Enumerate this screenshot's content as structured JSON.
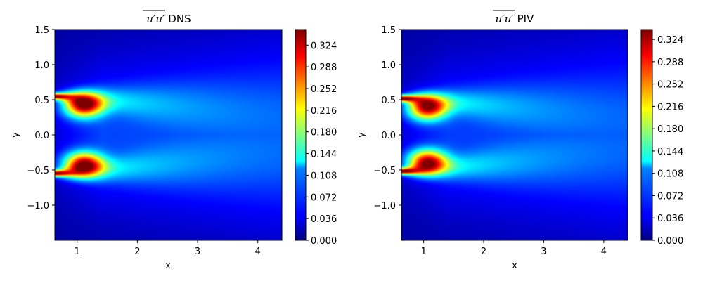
{
  "chart_data": [
    {
      "type": "heatmap",
      "title": {
        "symbol": "u′u′",
        "suffix": " DNS"
      },
      "xlabel": "x",
      "ylabel": "y",
      "xlim": [
        0.63,
        4.4
      ],
      "ylim": [
        -1.5,
        1.5
      ],
      "xticks": [
        1,
        2,
        3,
        4
      ],
      "yticks": [
        1.5,
        1.0,
        0.5,
        0.0,
        -0.5,
        -1.0
      ],
      "ytick_labels": [
        "1.5",
        "1.0",
        "0.5",
        "0.0",
        "−0.5",
        "−1.0"
      ],
      "colormap": "jet",
      "colorbar": {
        "min": 0.0,
        "max": 0.35,
        "ticks": [
          "0.000",
          "0.036",
          "0.072",
          "0.108",
          "0.144",
          "0.180",
          "0.216",
          "0.252",
          "0.288",
          "0.324"
        ]
      },
      "field": {
        "description_peaks": [
          {
            "x": 1.1,
            "y": 0.42,
            "value": 0.35
          },
          {
            "x": 1.1,
            "y": -0.42,
            "value": 0.35
          }
        ],
        "shear_layer_y": 0.55,
        "background_value": 0.055
      }
    },
    {
      "type": "heatmap",
      "title": {
        "symbol": "u′u′",
        "suffix": " PIV"
      },
      "xlabel": "x",
      "ylabel": "y",
      "xlim": [
        0.63,
        4.4
      ],
      "ylim": [
        -1.5,
        1.5
      ],
      "xticks": [
        1,
        2,
        3,
        4
      ],
      "yticks": [
        1.5,
        1.0,
        0.5,
        0.0,
        -0.5,
        -1.0
      ],
      "ytick_labels": [
        "1.5",
        "1.0",
        "0.5",
        "0.0",
        "−0.5",
        "−1.0"
      ],
      "colormap": "jet",
      "colorbar": {
        "min": 0.0,
        "max": 0.34,
        "ticks": [
          "0.000",
          "0.036",
          "0.072",
          "0.108",
          "0.144",
          "0.180",
          "0.216",
          "0.252",
          "0.288",
          "0.324"
        ]
      },
      "field": {
        "description_peaks": [
          {
            "x": 1.05,
            "y": 0.38,
            "value": 0.33
          },
          {
            "x": 1.05,
            "y": -0.38,
            "value": 0.33
          }
        ],
        "shear_layer_y": 0.52,
        "background_value": 0.05
      }
    }
  ]
}
